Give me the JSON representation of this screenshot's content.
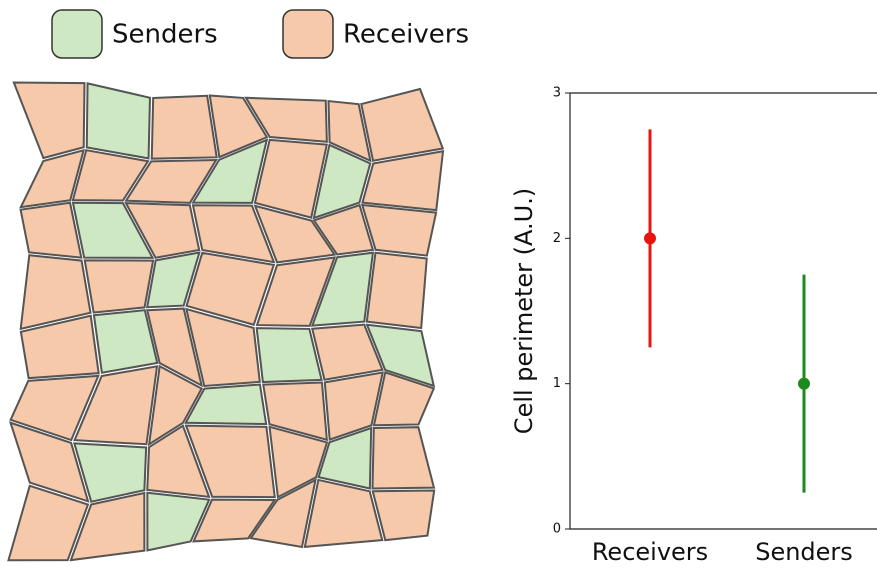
{
  "legend": [
    {
      "label": "Senders",
      "color": "#cfe8c4"
    },
    {
      "label": "Receivers",
      "color": "#f6c9ab"
    }
  ],
  "chart_data": {
    "type": "errorbar",
    "ylabel": "Cell perimeter (A.U.)",
    "categories": [
      "Receivers",
      "Senders"
    ],
    "values": [
      2,
      1
    ],
    "errors": [
      0.75,
      0.75
    ],
    "colors": [
      "#e8150f",
      "#1c8a1c"
    ],
    "ylim": [
      0,
      3
    ],
    "yticks": [
      0,
      1,
      2,
      3
    ]
  }
}
